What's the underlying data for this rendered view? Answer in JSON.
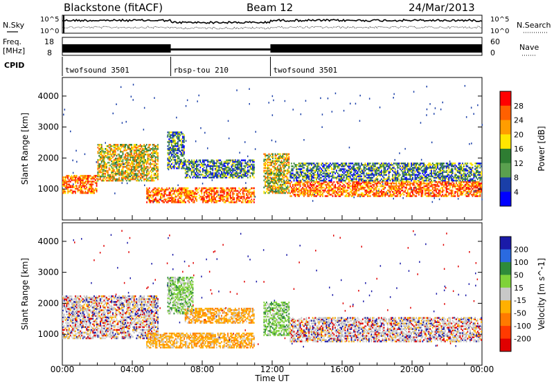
{
  "header": {
    "title": "Blackstone (fitACF)",
    "beam": "Beam 12",
    "date": "24/Mar/2013"
  },
  "panels": {
    "nsky_label": "N.Sky",
    "nsearch_label": "N.Search",
    "nave_label": "Nave",
    "freq_label_1": "Freq.",
    "freq_label_2": "[MHz]",
    "cpid_label": "CPID",
    "noise_ticks_left": [
      "10^5",
      "10^0"
    ],
    "noise_ticks_right": [
      "10^5",
      "10^0"
    ],
    "freq_ticks": [
      "18",
      "8"
    ],
    "nave_ticks": [
      "60",
      "0"
    ],
    "cpid_segments": [
      {
        "label": "twofsound 3501",
        "start_h": 0,
        "end_h": 6.2
      },
      {
        "label": "rbsp-tou 210",
        "start_h": 6.2,
        "end_h": 11.9
      },
      {
        "label": "twofsound 3501",
        "start_h": 11.9,
        "end_h": 24
      }
    ]
  },
  "chart_data": [
    {
      "type": "heatmap",
      "title": "",
      "xlabel": "Time UT",
      "ylabel": "Slant Range [km]",
      "xlim": [
        0,
        24
      ],
      "ylim": [
        0,
        4600
      ],
      "x_ticks": [
        "00:00",
        "04:00",
        "08:00",
        "12:00",
        "16:00",
        "20:00",
        "00:00"
      ],
      "y_ticks": [
        "1000",
        "2000",
        "3000",
        "4000"
      ],
      "y_tick_values": [
        1000,
        2000,
        3000,
        4000
      ],
      "colorbar": {
        "label": "Power [dB]",
        "ticks": [
          "28",
          "24",
          "20",
          "16",
          "12",
          "8",
          "4"
        ],
        "colors": [
          "#ff0000",
          "#ff6000",
          "#ff9d00",
          "#ffe600",
          "#2e7d32",
          "#5aa04f",
          "#1a3fa8",
          "#0000ff"
        ]
      },
      "bands": [
        {
          "t0": 0,
          "t1": 2,
          "r0": 900,
          "r1": 1500,
          "level": "high"
        },
        {
          "t0": 2,
          "t1": 5.5,
          "r0": 1300,
          "r1": 2500,
          "level": "mid"
        },
        {
          "t0": 6,
          "t1": 7,
          "r0": 1700,
          "r1": 2900,
          "level": "low"
        },
        {
          "t0": 7,
          "t1": 11,
          "r0": 1400,
          "r1": 2000,
          "level": "low"
        },
        {
          "t0": 4.8,
          "t1": 11,
          "r0": 600,
          "r1": 1100,
          "level": "high"
        },
        {
          "t0": 11.5,
          "t1": 13,
          "r0": 900,
          "r1": 2200,
          "level": "mid"
        },
        {
          "t0": 13,
          "t1": 24,
          "r0": 800,
          "r1": 1300,
          "level": "high"
        },
        {
          "t0": 13,
          "t1": 24,
          "r0": 1300,
          "r1": 1900,
          "level": "low"
        }
      ]
    },
    {
      "type": "heatmap",
      "title": "",
      "xlabel": "Time UT",
      "ylabel": "Slant Range [km]",
      "xlim": [
        0,
        24
      ],
      "ylim": [
        0,
        4600
      ],
      "x_ticks": [
        "00:00",
        "04:00",
        "08:00",
        "12:00",
        "16:00",
        "20:00",
        "00:00"
      ],
      "y_ticks": [
        "1000",
        "2000",
        "3000",
        "4000"
      ],
      "y_tick_values": [
        1000,
        2000,
        3000,
        4000
      ],
      "colorbar": {
        "label": "Velocity [m s^-1]",
        "ticks": [
          "200",
          "100",
          "50",
          "15",
          "-15",
          "-50",
          "-100",
          "-200"
        ],
        "colors": [
          "#1a1aa8",
          "#2a6ae0",
          "#2e8b3a",
          "#7fd23a",
          "#c8c8c8",
          "#ffb000",
          "#ff7a00",
          "#ff3a00",
          "#e00000"
        ]
      },
      "bands": [
        {
          "t0": 0,
          "t1": 5.5,
          "r0": 900,
          "r1": 2300,
          "level": "grey"
        },
        {
          "t0": 6,
          "t1": 7.5,
          "r0": 1700,
          "r1": 2900,
          "level": "green"
        },
        {
          "t0": 7,
          "t1": 11,
          "r0": 1400,
          "r1": 1900,
          "level": "orange"
        },
        {
          "t0": 4.8,
          "t1": 11,
          "r0": 600,
          "r1": 1100,
          "level": "orange"
        },
        {
          "t0": 11.5,
          "t1": 13,
          "r0": 1000,
          "r1": 2100,
          "level": "green"
        },
        {
          "t0": 13,
          "t1": 24,
          "r0": 800,
          "r1": 1600,
          "level": "grey"
        }
      ]
    }
  ]
}
